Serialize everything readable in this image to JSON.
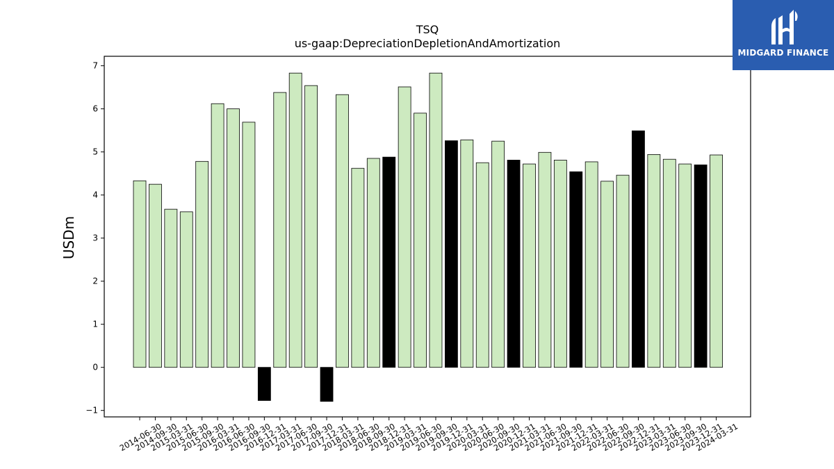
{
  "brand": {
    "name": "MIDGARD FINANCE",
    "color": "#2a5db0",
    "icon": "midgard-logo-icon"
  },
  "colors": {
    "positive": "#cdeac0",
    "highlight": "#000000",
    "edge": "#000000"
  },
  "chart_data": {
    "type": "bar",
    "title": "TSQ",
    "subtitle": "us-gaap:DepreciationDepletionAndAmortization",
    "xlabel": "",
    "ylabel": "USDm",
    "ylim": [
      -1.15,
      7.22
    ],
    "yticks": [
      -1,
      0,
      1,
      2,
      3,
      4,
      5,
      6,
      7
    ],
    "grid": false,
    "categories": [
      "2014-06-30",
      "2014-09-30",
      "2015-03-31",
      "2015-06-30",
      "2015-09-30",
      "2016-03-31",
      "2016-06-30",
      "2016-09-30",
      "2016-12-31",
      "2017-03-31",
      "2017-06-30",
      "2017-09-30",
      "2017-12-31",
      "2018-03-31",
      "2018-06-30",
      "2018-09-30",
      "2018-12-31",
      "2019-03-31",
      "2019-06-30",
      "2019-09-30",
      "2019-12-31",
      "2020-03-31",
      "2020-06-30",
      "2020-09-30",
      "2020-12-31",
      "2021-03-31",
      "2021-06-30",
      "2021-09-30",
      "2021-12-31",
      "2022-03-31",
      "2022-06-30",
      "2022-09-30",
      "2022-12-31",
      "2023-03-31",
      "2023-06-30",
      "2023-09-30",
      "2023-12-31",
      "2024-03-31"
    ],
    "values": [
      4.33,
      4.25,
      3.67,
      3.61,
      4.78,
      6.12,
      6.0,
      5.69,
      -0.77,
      6.38,
      6.83,
      6.54,
      -0.79,
      6.33,
      4.62,
      4.85,
      4.88,
      6.51,
      5.9,
      6.83,
      5.26,
      5.28,
      4.75,
      5.25,
      4.81,
      4.72,
      4.99,
      4.81,
      4.54,
      4.77,
      4.32,
      4.46,
      5.49,
      4.94,
      4.83,
      4.72,
      4.7,
      4.93
    ],
    "highlighted": [
      false,
      false,
      false,
      false,
      false,
      false,
      false,
      false,
      true,
      false,
      false,
      false,
      true,
      false,
      false,
      false,
      true,
      false,
      false,
      false,
      true,
      false,
      false,
      false,
      true,
      false,
      false,
      false,
      true,
      false,
      false,
      false,
      true,
      false,
      false,
      false,
      true,
      false
    ]
  }
}
